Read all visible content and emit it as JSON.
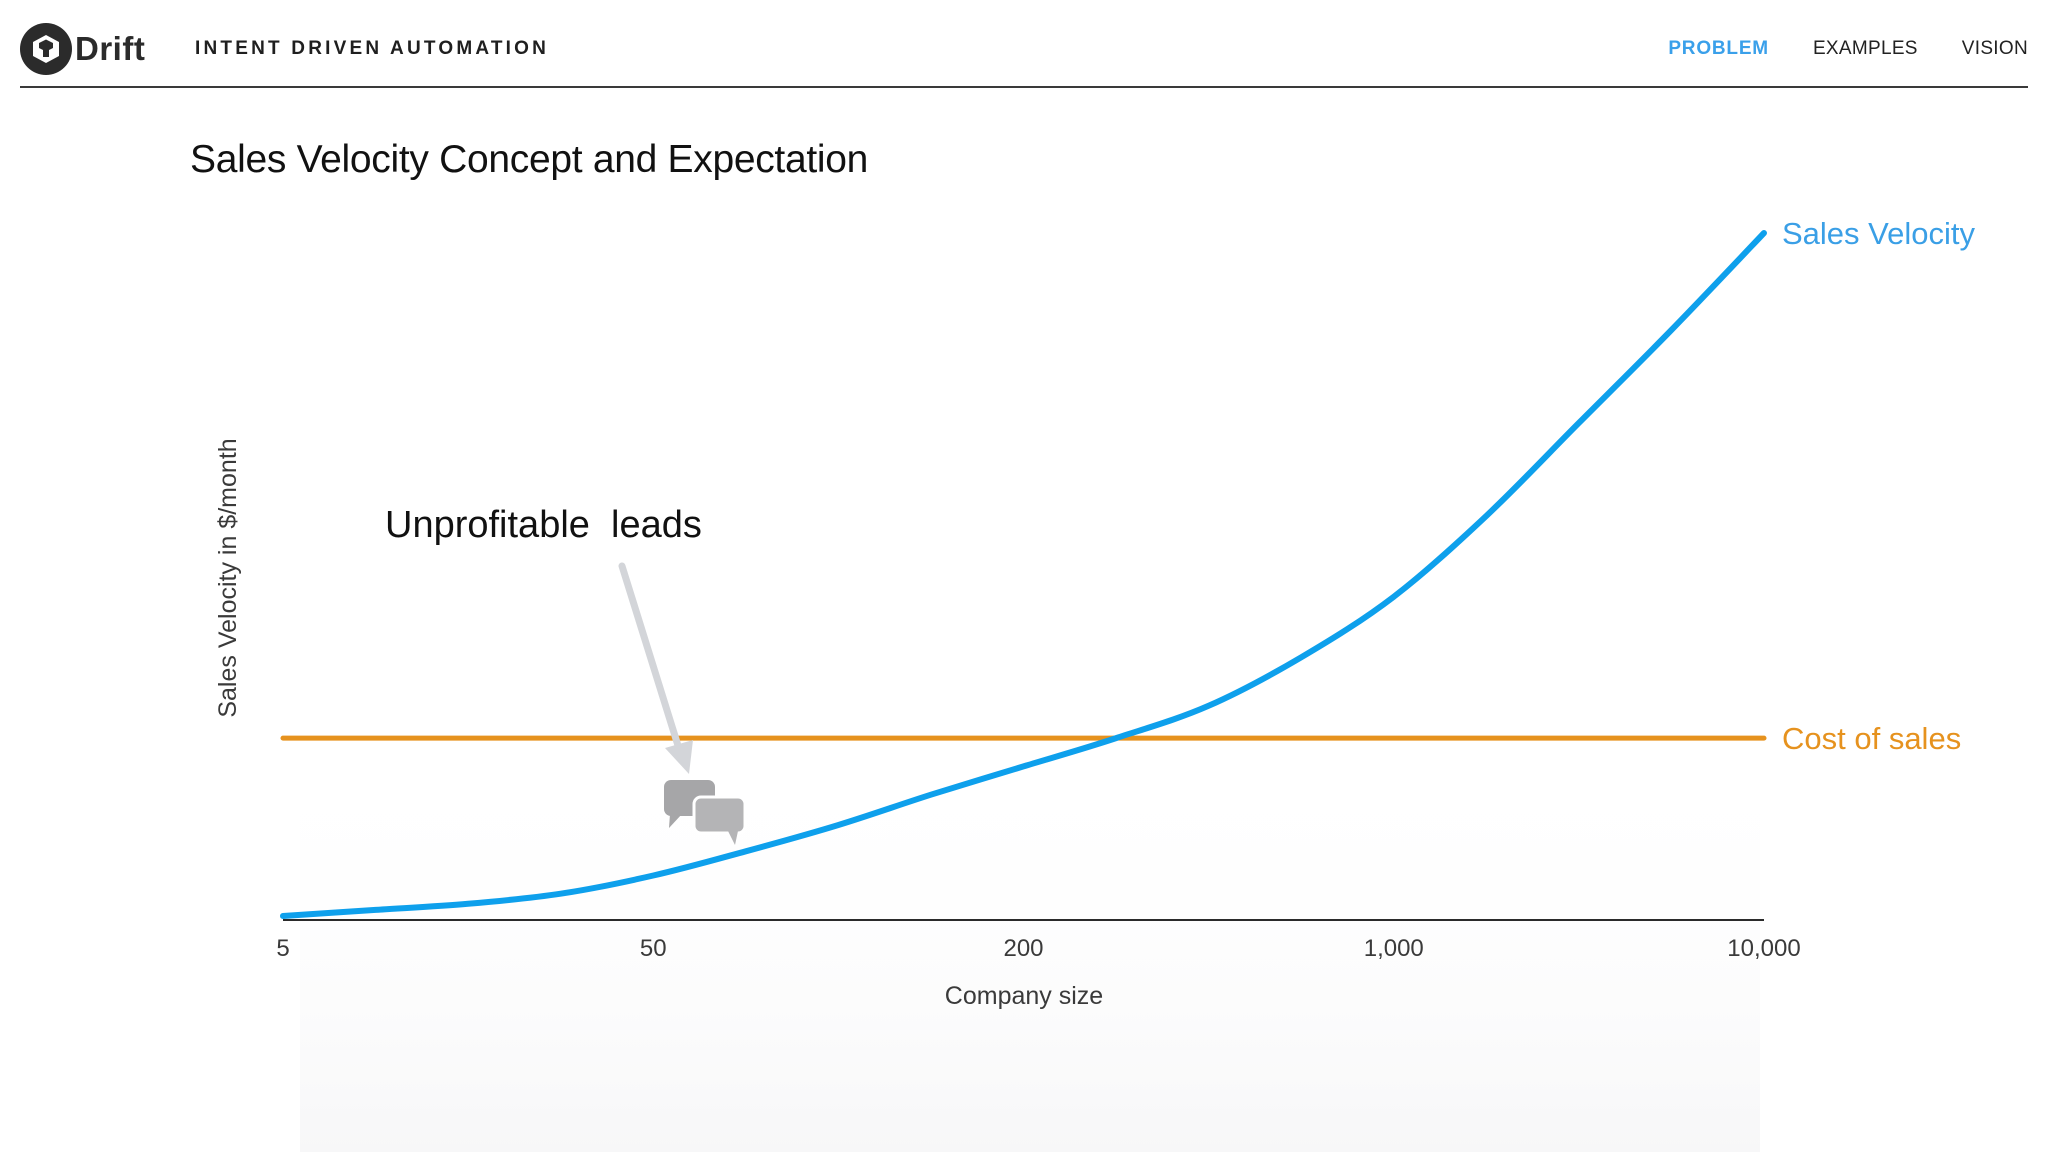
{
  "header": {
    "logo_text": "Drift",
    "tagline": "INTENT DRIVEN AUTOMATION",
    "nav": [
      {
        "label": "PROBLEM",
        "active": true
      },
      {
        "label": "EXAMPLES",
        "active": false
      },
      {
        "label": "VISION",
        "active": false
      }
    ]
  },
  "slide_title": "Sales Velocity Concept and Expectation",
  "chart_data": {
    "type": "line",
    "title": "",
    "xlabel": "Company size",
    "ylabel": "Sales Velocity in $/month",
    "x_scale": "ordinal",
    "x_ticks": [
      "5",
      "50",
      "200",
      "1,000",
      "10,000"
    ],
    "y_ticks_shown": false,
    "grid": false,
    "series": [
      {
        "name": "Sales Velocity",
        "color": "#0ea0ec",
        "x": [
          0,
          0.25,
          0.5,
          0.75,
          1.0,
          1.25,
          1.5,
          1.75,
          2.0,
          2.25,
          2.5,
          2.75,
          3.0,
          3.25,
          3.5,
          3.75,
          4.0
        ],
        "y": [
          0.02,
          0.05,
          0.08,
          0.13,
          0.22,
          0.34,
          0.47,
          0.62,
          0.76,
          0.9,
          1.06,
          1.3,
          1.6,
          2.0,
          2.46,
          2.92,
          3.4
        ]
      },
      {
        "name": "Cost of sales",
        "color": "#e6921e",
        "x": [
          0,
          4.0
        ],
        "y": [
          0.9,
          0.9
        ]
      }
    ],
    "ylim": [
      0,
      3.4
    ],
    "annotations": [
      {
        "text": "Unprofitable  leads",
        "points_to_x": 1.1,
        "icon": "chat-bubbles-icon"
      }
    ]
  }
}
